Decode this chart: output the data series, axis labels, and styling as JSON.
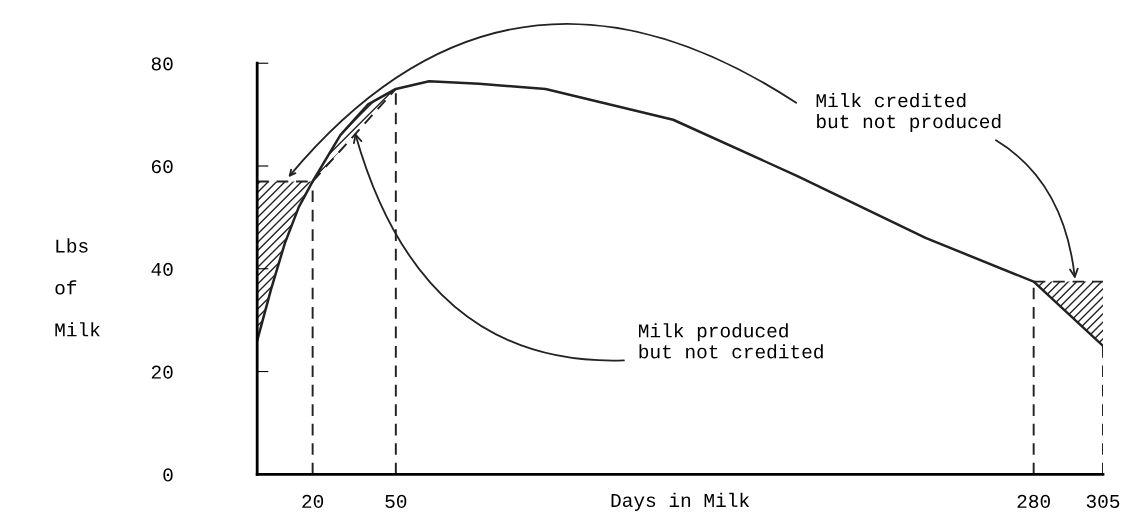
{
  "chart_data": {
    "type": "line",
    "xlabel": "Days in Milk",
    "ylabel": "Lbs of Milk",
    "xlim": [
      0,
      305
    ],
    "xticks": [
      20,
      50,
      280,
      305
    ],
    "ylim": [
      0,
      80
    ],
    "yticks": [
      0,
      20,
      40,
      60,
      80
    ],
    "grid": false,
    "marker": "none",
    "series": [
      {
        "color": "#222222",
        "line_style": "solid",
        "x": [
          0,
          5,
          10,
          15,
          20,
          30,
          40,
          50,
          62,
          80,
          104,
          150,
          195,
          241,
          280,
          305
        ],
        "values": [
          26,
          36,
          45,
          52,
          57,
          66,
          72,
          75,
          76.5,
          76,
          75,
          69,
          58,
          46,
          37.5,
          25
        ]
      },
      {
        "color": "#222222",
        "line_style": "dashed",
        "x": [
          0,
          20
        ],
        "values": [
          57,
          57
        ]
      },
      {
        "color": "#222222",
        "line_style": "dashed",
        "x": [
          20,
          50
        ],
        "values": [
          57,
          75
        ]
      },
      {
        "color": "#222222",
        "line_style": "dashed",
        "x": [
          280,
          305
        ],
        "values": [
          37.5,
          37.5
        ]
      }
    ],
    "ref_lines": [
      {
        "axis": "x",
        "value": 20,
        "color": "#222222",
        "line_style": "dashed"
      },
      {
        "axis": "x",
        "value": 50,
        "color": "#222222",
        "line_style": "dashed"
      },
      {
        "axis": "x",
        "value": 280,
        "color": "#222222",
        "line_style": "dashed"
      },
      {
        "axis": "x",
        "value": 305,
        "color": "#222222",
        "line_style": "dashed"
      }
    ],
    "annotations": [
      {
        "text": "Milk credited\nbut not produced",
        "x": 295,
        "y": 37.5
      },
      {
        "text": "Milk produced\nbut not credited",
        "x": 35,
        "y": 67
      }
    ]
  }
}
